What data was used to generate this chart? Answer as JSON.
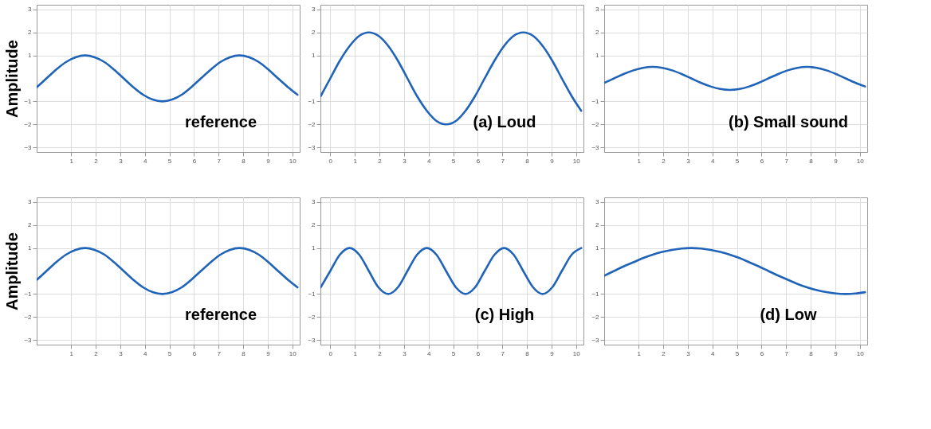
{
  "chart_data": [
    {
      "type": "line",
      "ylabel": "Amplitude",
      "annotations": [
        "reference"
      ],
      "xlim": [
        -0.4,
        10.3
      ],
      "ylim": [
        -3.2,
        3.2
      ],
      "xticks": [
        1,
        2,
        3,
        4,
        5,
        6,
        7,
        8,
        9,
        10
      ],
      "yticks": [
        -3,
        -2,
        -1,
        1,
        2,
        3
      ],
      "grid": true,
      "line_style": "solid",
      "marker": "none",
      "x": [
        -0.39,
        0,
        0.39,
        0.79,
        1.18,
        1.57,
        1.96,
        2.36,
        2.75,
        3.14,
        3.53,
        3.93,
        4.32,
        4.71,
        5.11,
        5.5,
        5.89,
        6.28,
        6.68,
        7.07,
        7.46,
        7.85,
        8.25,
        8.64,
        9.03,
        9.42,
        9.82,
        10.21
      ],
      "series": [
        {
          "color": "#1f64b8",
          "values": [
            -0.38,
            0,
            0.38,
            0.71,
            0.92,
            1,
            0.92,
            0.71,
            0.38,
            0,
            -0.38,
            -0.71,
            -0.92,
            -1,
            -0.92,
            -0.71,
            -0.38,
            0,
            0.38,
            0.71,
            0.92,
            1,
            0.92,
            0.71,
            0.38,
            0,
            -0.38,
            -0.71
          ]
        }
      ]
    },
    {
      "type": "line",
      "annotations": [
        "(a) Loud"
      ],
      "xlim": [
        -0.4,
        10.3
      ],
      "ylim": [
        -3.2,
        3.2
      ],
      "xticks": [
        0,
        1,
        2,
        3,
        4,
        5,
        6,
        7,
        8,
        9,
        10
      ],
      "yticks": [
        -3,
        -2,
        -1,
        1,
        2,
        3
      ],
      "grid": true,
      "line_style": "solid",
      "marker": "none",
      "x": [
        -0.39,
        0,
        0.39,
        0.79,
        1.18,
        1.57,
        1.96,
        2.36,
        2.75,
        3.14,
        3.53,
        3.93,
        4.32,
        4.71,
        5.11,
        5.5,
        5.89,
        6.28,
        6.68,
        7.07,
        7.46,
        7.85,
        8.25,
        8.64,
        9.03,
        9.42,
        9.82,
        10.21
      ],
      "series": [
        {
          "color": "#1f64b8",
          "values": [
            -0.77,
            0,
            0.77,
            1.41,
            1.85,
            2,
            1.85,
            1.41,
            0.77,
            0,
            -0.77,
            -1.41,
            -1.85,
            -2,
            -1.85,
            -1.41,
            -0.77,
            0,
            0.77,
            1.41,
            1.85,
            2,
            1.85,
            1.41,
            0.77,
            0,
            -0.77,
            -1.41
          ]
        }
      ]
    },
    {
      "type": "line",
      "annotations": [
        "(b) Small sound"
      ],
      "xlim": [
        -0.4,
        10.3
      ],
      "ylim": [
        -3.2,
        3.2
      ],
      "xticks": [
        1,
        2,
        3,
        4,
        5,
        6,
        7,
        8,
        9,
        10
      ],
      "yticks": [
        -3,
        -2,
        -1,
        1,
        2,
        3
      ],
      "grid": true,
      "line_style": "solid",
      "marker": "none",
      "x": [
        -0.39,
        0,
        0.39,
        0.79,
        1.18,
        1.57,
        1.96,
        2.36,
        2.75,
        3.14,
        3.53,
        3.93,
        4.32,
        4.71,
        5.11,
        5.5,
        5.89,
        6.28,
        6.68,
        7.07,
        7.46,
        7.85,
        8.25,
        8.64,
        9.03,
        9.42,
        9.82,
        10.21
      ],
      "series": [
        {
          "color": "#1f64b8",
          "values": [
            -0.19,
            0,
            0.19,
            0.35,
            0.46,
            0.5,
            0.46,
            0.35,
            0.19,
            0,
            -0.19,
            -0.35,
            -0.46,
            -0.5,
            -0.46,
            -0.35,
            -0.19,
            0,
            0.19,
            0.35,
            0.46,
            0.5,
            0.46,
            0.35,
            0.19,
            0,
            -0.19,
            -0.35
          ]
        }
      ]
    },
    {
      "type": "line",
      "ylabel": "Amplitude",
      "annotations": [
        "reference"
      ],
      "xlim": [
        -0.4,
        10.3
      ],
      "ylim": [
        -3.2,
        3.2
      ],
      "xticks": [
        1,
        2,
        3,
        4,
        5,
        6,
        7,
        8,
        9,
        10
      ],
      "yticks": [
        -3,
        -2,
        -1,
        1,
        2,
        3
      ],
      "grid": true,
      "line_style": "solid",
      "marker": "none",
      "x": [
        -0.39,
        0,
        0.39,
        0.79,
        1.18,
        1.57,
        1.96,
        2.36,
        2.75,
        3.14,
        3.53,
        3.93,
        4.32,
        4.71,
        5.11,
        5.5,
        5.89,
        6.28,
        6.68,
        7.07,
        7.46,
        7.85,
        8.25,
        8.64,
        9.03,
        9.42,
        9.82,
        10.21
      ],
      "series": [
        {
          "color": "#1f64b8",
          "values": [
            -0.38,
            0,
            0.38,
            0.71,
            0.92,
            1,
            0.92,
            0.71,
            0.38,
            0,
            -0.38,
            -0.71,
            -0.92,
            -1,
            -0.92,
            -0.71,
            -0.38,
            0,
            0.38,
            0.71,
            0.92,
            1,
            0.92,
            0.71,
            0.38,
            0,
            -0.38,
            -0.71
          ]
        }
      ]
    },
    {
      "type": "line",
      "annotations": [
        "(c) High"
      ],
      "xlim": [
        -0.4,
        10.3
      ],
      "ylim": [
        -3.2,
        3.2
      ],
      "xticks": [
        0,
        1,
        2,
        3,
        4,
        5,
        6,
        7,
        8,
        9,
        10
      ],
      "yticks": [
        -3,
        -2,
        -1,
        1,
        2,
        3
      ],
      "grid": true,
      "line_style": "solid",
      "marker": "none",
      "x": [
        -0.39,
        0,
        0.39,
        0.79,
        1.18,
        1.57,
        1.96,
        2.36,
        2.75,
        3.14,
        3.53,
        3.93,
        4.32,
        4.71,
        5.11,
        5.5,
        5.89,
        6.28,
        6.68,
        7.07,
        7.46,
        7.85,
        8.25,
        8.64,
        9.03,
        9.42,
        9.82,
        10.21
      ],
      "series": [
        {
          "color": "#1f64b8",
          "values": [
            -0.71,
            0,
            0.71,
            1,
            0.71,
            0,
            -0.71,
            -1,
            -0.71,
            0,
            0.71,
            1,
            0.71,
            0,
            -0.71,
            -1,
            -0.71,
            0,
            0.71,
            1,
            0.71,
            0,
            -0.71,
            -1,
            -0.71,
            0,
            0.71,
            1
          ]
        }
      ]
    },
    {
      "type": "line",
      "annotations": [
        "(d) Low"
      ],
      "xlim": [
        -0.4,
        10.3
      ],
      "ylim": [
        -3.2,
        3.2
      ],
      "xticks": [
        1,
        2,
        3,
        4,
        5,
        6,
        7,
        8,
        9,
        10
      ],
      "yticks": [
        -3,
        -2,
        -1,
        1,
        2,
        3
      ],
      "grid": true,
      "line_style": "solid",
      "marker": "none",
      "x": [
        -0.39,
        0,
        0.39,
        0.79,
        1.18,
        1.57,
        1.96,
        2.36,
        2.75,
        3.14,
        3.53,
        3.93,
        4.32,
        4.71,
        5.11,
        5.5,
        5.89,
        6.28,
        6.68,
        7.07,
        7.46,
        7.85,
        8.25,
        8.64,
        9.03,
        9.42,
        9.82,
        10.21
      ],
      "series": [
        {
          "color": "#1f64b8",
          "values": [
            -0.2,
            0,
            0.2,
            0.38,
            0.56,
            0.71,
            0.83,
            0.92,
            0.98,
            1,
            0.98,
            0.92,
            0.83,
            0.71,
            0.56,
            0.38,
            0.2,
            0,
            -0.2,
            -0.38,
            -0.56,
            -0.71,
            -0.83,
            -0.92,
            -0.98,
            -1,
            -0.98,
            -0.92
          ]
        }
      ]
    }
  ]
}
